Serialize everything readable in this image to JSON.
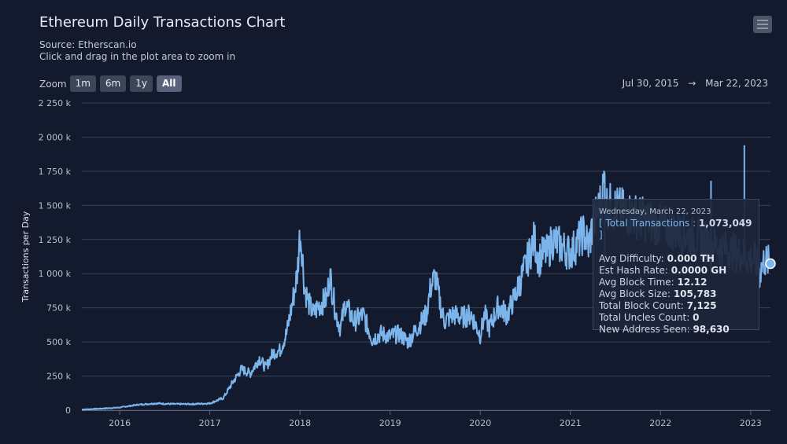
{
  "header": {
    "title": "Ethereum Daily Transactions Chart",
    "source": "Source: Etherscan.io",
    "hint": "Click and drag in the plot area to zoom in"
  },
  "zoom": {
    "label": "Zoom",
    "buttons": [
      "1m",
      "6m",
      "1y",
      "All"
    ],
    "active": "All"
  },
  "range": {
    "from": "Jul 30, 2015",
    "arrow": "→",
    "to": "Mar 22, 2023"
  },
  "tooltip": {
    "date": "Wednesday, March 22, 2023",
    "total_label": "Total Transactions",
    "total_value": "1,073,049",
    "rows": [
      {
        "label": "Avg Difficulty:",
        "value": "0.000 TH"
      },
      {
        "label": "Est Hash Rate:",
        "value": "0.0000 GH"
      },
      {
        "label": "Avg Block Time:",
        "value": "12.12"
      },
      {
        "label": "Avg Block Size:",
        "value": "105,783"
      },
      {
        "label": "Total Block Count:",
        "value": "7,125"
      },
      {
        "label": "Total Uncles Count:",
        "value": "0"
      },
      {
        "label": "New Address Seen:",
        "value": "98,630"
      }
    ]
  },
  "colors": {
    "line": "#7cb5ec",
    "grid": "#3a4258",
    "axis_text": "#b7bfcf"
  },
  "chart_data": {
    "type": "line",
    "title": "Ethereum Daily Transactions Chart",
    "ylabel": "Transactions per Day",
    "xlabel": "",
    "ylim": [
      0,
      2250000
    ],
    "xlim": [
      2015.58,
      2023.22
    ],
    "y_ticks": [
      0,
      250000,
      500000,
      750000,
      1000000,
      1250000,
      1500000,
      1750000,
      2000000,
      2250000
    ],
    "y_tick_labels": [
      "0",
      "250 k",
      "500 k",
      "750 k",
      "1 000 k",
      "1 250 k",
      "1 500 k",
      "1 750 k",
      "2 000 k",
      "2 250 k"
    ],
    "x_ticks": [
      2016,
      2017,
      2018,
      2019,
      2020,
      2021,
      2022,
      2023
    ],
    "x_tick_labels": [
      "2016",
      "2017",
      "2018",
      "2019",
      "2020",
      "2021",
      "2022",
      "2023"
    ],
    "series": [
      {
        "name": "Total Transactions",
        "x": [
          2015.58,
          2015.75,
          2016.0,
          2016.2,
          2016.4,
          2016.6,
          2016.8,
          2017.0,
          2017.15,
          2017.25,
          2017.35,
          2017.45,
          2017.55,
          2017.62,
          2017.7,
          2017.78,
          2017.85,
          2017.92,
          2017.97,
          2018.0,
          2018.02,
          2018.05,
          2018.1,
          2018.15,
          2018.2,
          2018.3,
          2018.33,
          2018.4,
          2018.45,
          2018.5,
          2018.6,
          2018.7,
          2018.8,
          2018.9,
          2019.0,
          2019.1,
          2019.2,
          2019.3,
          2019.4,
          2019.45,
          2019.5,
          2019.55,
          2019.6,
          2019.7,
          2019.8,
          2019.9,
          2020.0,
          2020.05,
          2020.1,
          2020.2,
          2020.3,
          2020.4,
          2020.5,
          2020.55,
          2020.6,
          2020.65,
          2020.7,
          2020.75,
          2020.8,
          2020.9,
          2021.0,
          2021.1,
          2021.15,
          2021.2,
          2021.25,
          2021.3,
          2021.33,
          2021.36,
          2021.38,
          2021.4,
          2023.05,
          2023.1,
          2023.15,
          2023.22
        ],
        "values": [
          5000,
          10000,
          20000,
          40000,
          50000,
          45000,
          45000,
          50000,
          90000,
          200000,
          300000,
          270000,
          380000,
          310000,
          420000,
          440000,
          560000,
          800000,
          1000000,
          1300000,
          1200000,
          900000,
          780000,
          700000,
          760000,
          820000,
          1000000,
          700000,
          600000,
          780000,
          650000,
          700000,
          520000,
          560000,
          540000,
          560000,
          500000,
          600000,
          700000,
          900000,
          980000,
          800000,
          650000,
          700000,
          680000,
          700000,
          550000,
          700000,
          600000,
          760000,
          700000,
          860000,
          1050000,
          1150000,
          1250000,
          1100000,
          1150000,
          1150000,
          1250000,
          1200000,
          1150000,
          1250000,
          1300000,
          1200000,
          1350000,
          1450000,
          1500000,
          1600000,
          1700000,
          1500000,
          1100000,
          1000000,
          1100000,
          1073049
        ]
      }
    ],
    "spikes": [
      {
        "x": 2021.38,
        "value": 1720000
      },
      {
        "x": 2022.56,
        "value": 1680000
      },
      {
        "x": 2022.93,
        "value": 1940000
      }
    ],
    "hover_point": {
      "x": 2023.22,
      "value": 1073049
    }
  }
}
